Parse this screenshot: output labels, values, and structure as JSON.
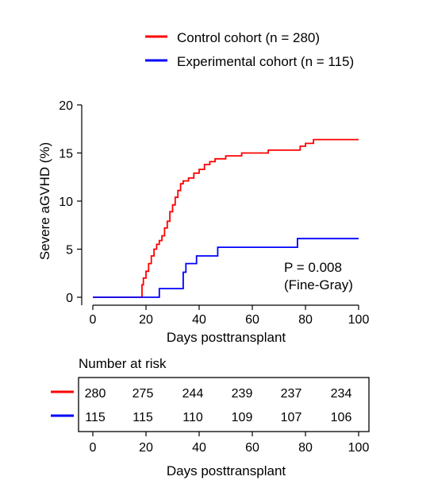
{
  "chart_data": {
    "type": "line",
    "subtype": "cumulative-incidence-step",
    "title": "",
    "xlabel": "Days posttransplant",
    "ylabel": "Severe aGVHD (%)",
    "xlim": [
      0,
      100
    ],
    "ylim": [
      0,
      20
    ],
    "xticks": [
      0,
      20,
      40,
      60,
      80,
      100
    ],
    "yticks": [
      0,
      5,
      10,
      15,
      20
    ],
    "grid": false,
    "legend_position": "top-right",
    "series": [
      {
        "name": "Control cohort (n = 280)",
        "color": "#ff0000",
        "points": [
          [
            0,
            0
          ],
          [
            18.5,
            0
          ],
          [
            18.5,
            1.3
          ],
          [
            19,
            1.3
          ],
          [
            19,
            2.0
          ],
          [
            20,
            2.0
          ],
          [
            20,
            2.7
          ],
          [
            21,
            2.7
          ],
          [
            21,
            3.5
          ],
          [
            22,
            3.5
          ],
          [
            22,
            4.3
          ],
          [
            23,
            4.3
          ],
          [
            23,
            5.0
          ],
          [
            24,
            5.0
          ],
          [
            24,
            5.5
          ],
          [
            25,
            5.5
          ],
          [
            25,
            5.9
          ],
          [
            26,
            5.9
          ],
          [
            26,
            6.4
          ],
          [
            27,
            6.4
          ],
          [
            27,
            7.2
          ],
          [
            28,
            7.2
          ],
          [
            28,
            7.9
          ],
          [
            29,
            7.9
          ],
          [
            29,
            8.9
          ],
          [
            30,
            8.9
          ],
          [
            30,
            9.6
          ],
          [
            31,
            9.6
          ],
          [
            31,
            10.4
          ],
          [
            32,
            10.4
          ],
          [
            32,
            11.1
          ],
          [
            33,
            11.1
          ],
          [
            33,
            11.8
          ],
          [
            34,
            11.8
          ],
          [
            34,
            12.1
          ],
          [
            36,
            12.1
          ],
          [
            36,
            12.4
          ],
          [
            38,
            12.4
          ],
          [
            38,
            12.9
          ],
          [
            40,
            12.9
          ],
          [
            40,
            13.3
          ],
          [
            42,
            13.3
          ],
          [
            42,
            13.8
          ],
          [
            44,
            13.8
          ],
          [
            44,
            14.1
          ],
          [
            46,
            14.1
          ],
          [
            46,
            14.4
          ],
          [
            50,
            14.4
          ],
          [
            50,
            14.7
          ],
          [
            56,
            14.7
          ],
          [
            56,
            15.0
          ],
          [
            66,
            15.0
          ],
          [
            66,
            15.3
          ],
          [
            78,
            15.3
          ],
          [
            78,
            15.7
          ],
          [
            80,
            15.7
          ],
          [
            80,
            16.0
          ],
          [
            83,
            16.0
          ],
          [
            83,
            16.4
          ],
          [
            100,
            16.4
          ]
        ]
      },
      {
        "name": "Experimental cohort (n = 115)",
        "color": "#0000ff",
        "points": [
          [
            0,
            0
          ],
          [
            25,
            0
          ],
          [
            25,
            0.9
          ],
          [
            34,
            0.9
          ],
          [
            34,
            2.6
          ],
          [
            35,
            2.6
          ],
          [
            35,
            3.5
          ],
          [
            39,
            3.5
          ],
          [
            39,
            4.3
          ],
          [
            47,
            4.3
          ],
          [
            47,
            5.2
          ],
          [
            77,
            5.2
          ],
          [
            77,
            6.1
          ],
          [
            100,
            6.1
          ]
        ]
      }
    ],
    "annotations": [
      "P = 0.008",
      "(Fine-Gray)"
    ],
    "risk_table": {
      "title": "Number at risk",
      "xlabel": "Days posttransplant",
      "ticks": [
        "0",
        "20",
        "40",
        "60",
        "80",
        "100"
      ],
      "rows": [
        {
          "color": "#ff0000",
          "values": [
            "280",
            "275",
            "244",
            "239",
            "237",
            "234"
          ]
        },
        {
          "color": "#0000ff",
          "values": [
            "115",
            "115",
            "110",
            "109",
            "107",
            "106"
          ]
        }
      ]
    }
  }
}
